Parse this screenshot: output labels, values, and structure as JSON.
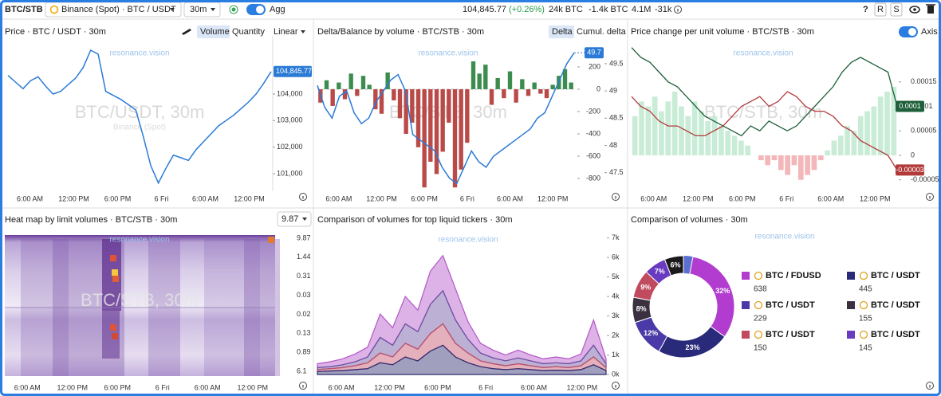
{
  "header": {
    "symbol": "BTC/STB",
    "exchange": "Binance (Spot) · BTC / USDT",
    "interval": "30m",
    "agg": "Agg",
    "price": "104,845.77",
    "change": "(+0.26%)",
    "stat1": "24k BTC",
    "stat2": "-1.4k BTC",
    "stat3": "4.1M",
    "stat4": "-31k",
    "buttons": [
      "?",
      "R",
      "S"
    ]
  },
  "chart_data": [
    {
      "type": "line",
      "title": "Price · BTC / USDT · 30m",
      "controls": [
        "Volume",
        "Quantity",
        "Linear"
      ],
      "watermarks": [
        "resonance.vision",
        "BTC/USDT, 30m",
        "Binance (Spot)"
      ],
      "x_labels": [
        "6:00 AM",
        "12:00 PM",
        "6:00 PM",
        "6 Fri",
        "6:00 AM",
        "12:00 PM"
      ],
      "ylim": [
        100340,
        106190
      ],
      "yticks": [
        {
          "value": 104000,
          "label": "104,000"
        },
        {
          "value": 103000,
          "label": "103,000"
        },
        {
          "value": 102000,
          "label": "102,000"
        },
        {
          "value": 101000,
          "label": "101,000"
        }
      ],
      "last_label": "104,845.77",
      "series": [
        {
          "color": "#2b7bd6",
          "values": [
            104700,
            104450,
            104200,
            104500,
            104650,
            104300,
            104000,
            104100,
            104350,
            104600,
            105000,
            105650,
            105500,
            104100,
            103950,
            103800,
            103600,
            103400,
            102400,
            101300,
            100650,
            101200,
            101700,
            101600,
            101500,
            101900,
            102200,
            102500,
            102800,
            103000,
            103200,
            103450,
            103700,
            104000,
            104400,
            104845.77
          ]
        }
      ]
    },
    {
      "type": "bar_line",
      "title": "Delta/Balance by volume · BTC/STB · 30m",
      "controls": [
        "Delta",
        "Cumul. delta"
      ],
      "watermarks": [
        "resonance.vision",
        "BTC/STB, 30m"
      ],
      "x_labels": [
        "6:00 AM",
        "12:00 PM",
        "6:00 PM",
        "6 Fri",
        "6:00 AM",
        "12:00 PM"
      ],
      "ylim": [
        -914,
        478
      ],
      "yticks": [
        200,
        0,
        -200,
        -400,
        -600,
        -800
      ],
      "y2lim": [
        47.16,
        50.01
      ],
      "y2ticks": [
        49.5,
        49,
        48.5,
        48,
        47.5
      ],
      "last_label": "49.7",
      "series": [
        {
          "type": "bar",
          "color": "#3d8c4f",
          "negative_color": "#b94a48",
          "values": [
            -120,
            80,
            -150,
            60,
            -90,
            140,
            -60,
            120,
            40,
            -180,
            -220,
            150,
            -100,
            -260,
            -400,
            -300,
            -520,
            -880,
            -650,
            -760,
            -560,
            -300,
            -880,
            -720,
            -480,
            250,
            140,
            220,
            -140,
            100,
            -80,
            160,
            -120,
            90,
            -60,
            60,
            -40,
            -80,
            40,
            120,
            180,
            60
          ]
        },
        {
          "type": "line",
          "axis": "y2",
          "color": "#2b7bd6",
          "values": [
            49.1,
            48.7,
            48.5,
            48.9,
            49.0,
            48.6,
            48.4,
            48.5,
            48.8,
            49.0,
            49.2,
            49.3,
            49.0,
            48.2,
            48.1,
            48.0,
            47.9,
            47.6,
            47.4,
            47.3,
            47.6,
            47.9,
            47.7,
            47.6,
            47.8,
            47.9,
            48.0,
            48.1,
            48.2,
            48.3,
            48.5,
            48.6,
            48.9,
            49.2,
            49.5,
            49.7
          ]
        }
      ]
    },
    {
      "type": "bar_line",
      "title": "Price change per unit volume · BTC/STB · 30m",
      "controls": [
        "Axis"
      ],
      "watermarks": [
        "resonance.vision",
        "BTC/STB, 30m"
      ],
      "x_labels": [
        "6:00 AM",
        "12:00 PM",
        "6:00 PM",
        "6 Fri",
        "6:00 AM",
        "12:00 PM"
      ],
      "ylim": [
        -7.33e-05,
        0.000244
      ],
      "yticks": [
        0.00015,
        0.0001,
        5e-05,
        0,
        -5e-05
      ],
      "last_labels": [
        "0.0001",
        "-0.00003"
      ],
      "series": [
        {
          "type": "bar",
          "color": "#c8ecd6",
          "negative_color": "#f3b7b9",
          "values": [
            8e-05,
            0.00011,
            0.0001,
            0.00012,
            9e-05,
            0.00011,
            0.00013,
            0.0001,
            8e-05,
            0.00011,
            9e-05,
            7e-05,
            8e-05,
            6e-05,
            5e-05,
            4e-05,
            3e-05,
            2e-05,
            0,
            -1e-05,
            -2e-05,
            -1e-05,
            -3e-05,
            -4e-05,
            -2e-05,
            -5e-05,
            -4e-05,
            -3e-05,
            -1e-05,
            1e-05,
            3e-05,
            4e-05,
            6e-05,
            5e-05,
            8e-05,
            9e-05,
            0.0001,
            0.00012,
            0.00013,
            0.00014
          ]
        },
        {
          "type": "line",
          "color": "#1f5f3a",
          "values": [
            0.00022,
            0.0002,
            0.00019,
            0.00017,
            0.00015,
            0.00014,
            0.00012,
            0.0001,
            8e-05,
            7e-05,
            6e-05,
            5e-05,
            4e-05,
            6e-05,
            5e-05,
            7e-05,
            6e-05,
            5e-05,
            6e-05,
            8e-05,
            0.0001,
            0.00012,
            0.00014,
            0.00017,
            0.00019,
            0.0002,
            0.00019,
            0.00018,
            0.00017,
            0.0001
          ]
        },
        {
          "type": "line",
          "color": "#b23a3a",
          "values": [
            0.00012,
            0.0001,
            9e-05,
            7e-05,
            6e-05,
            6e-05,
            5e-05,
            4e-05,
            4e-05,
            5e-05,
            6e-05,
            8e-05,
            0.0001,
            0.00011,
            0.00012,
            0.0001,
            0.00011,
            0.00013,
            0.00012,
            0.0001,
            9e-05,
            9e-05,
            8e-05,
            6e-05,
            5e-05,
            3e-05,
            2e-05,
            1e-05,
            0,
            -3e-05
          ]
        }
      ]
    },
    {
      "type": "heatmap",
      "title": "Heat map by limit volumes · BTC/STB · 30m",
      "threshold": 9.87,
      "watermarks": [
        "resonance.vision",
        "BTC/STB, 30m"
      ],
      "x_labels": [
        "6:00 AM",
        "12:00 PM",
        "6:00 PM",
        "6 Fri",
        "6:00 AM",
        "12:00 PM"
      ],
      "scale_labels": [
        9.87,
        1.44,
        0.31,
        0.03,
        0.02,
        0.13,
        0.89,
        6.1
      ]
    },
    {
      "type": "stacked_area",
      "title": "Comparison of volumes for top liquid tickers · 30m",
      "watermarks": [
        "resonance.vision"
      ],
      "x_labels": [
        "6:00 AM",
        "12:00 PM",
        "6:00 PM",
        "6 Fri",
        "6:00 AM",
        "12:00 PM"
      ],
      "ylim": [
        0,
        7150
      ],
      "yticks": [
        {
          "value": 7000,
          "label": "7k"
        },
        {
          "value": 6000,
          "label": "6k"
        },
        {
          "value": 5000,
          "label": "5k"
        },
        {
          "value": 4000,
          "label": "4k"
        },
        {
          "value": 3000,
          "label": "3k"
        },
        {
          "value": 2000,
          "label": "2k"
        },
        {
          "value": 1000,
          "label": "1k"
        },
        {
          "value": 0,
          "label": "0k"
        }
      ],
      "series": [
        {
          "color": "#2e2a6e",
          "values": [
            150,
            180,
            200,
            250,
            300,
            600,
            500,
            900,
            700,
            1200,
            1500,
            900,
            600,
            400,
            300,
            250,
            300,
            250,
            200,
            220,
            200,
            250,
            500,
            200
          ]
        },
        {
          "color": "#c0506a",
          "values": [
            100,
            120,
            150,
            200,
            300,
            500,
            400,
            700,
            600,
            900,
            1100,
            700,
            500,
            300,
            250,
            200,
            250,
            200,
            150,
            180,
            150,
            200,
            400,
            150
          ]
        },
        {
          "color": "#6b4fa0",
          "values": [
            100,
            100,
            150,
            200,
            300,
            800,
            600,
            1000,
            900,
            1500,
            1700,
            1200,
            700,
            400,
            300,
            250,
            300,
            250,
            200,
            200,
            200,
            250,
            600,
            200
          ]
        },
        {
          "color": "#b455c8",
          "values": [
            200,
            250,
            300,
            400,
            500,
            1200,
            900,
            1400,
            1100,
            1700,
            1800,
            1600,
            900,
            500,
            400,
            300,
            400,
            300,
            250,
            300,
            250,
            350,
            1300,
            250
          ]
        }
      ]
    },
    {
      "type": "donut",
      "title": "Comparison of volumes · 30m",
      "watermarks": [
        "resonance.vision"
      ],
      "values": [
        32,
        23,
        12,
        8,
        9,
        7,
        6
      ],
      "value_labels": [
        "32%",
        "23%",
        "12%",
        "8%",
        "9%",
        "7%",
        "6%"
      ],
      "colors": [
        "#b23ccf",
        "#2a2a7a",
        "#4a3aa8",
        "#3b3040",
        "#c04a5e",
        "#6a3ac0",
        "#1a1a1a"
      ],
      "legend": [
        {
          "label": "BTC / FDUSD",
          "value": 638,
          "color": "#b23ccf"
        },
        {
          "label": "BTC / USDT",
          "value": 445,
          "color": "#2a2a7a"
        },
        {
          "label": "BTC / USDT",
          "value": 229,
          "color": "#4a3aa8"
        },
        {
          "label": "BTC / USDT",
          "value": 155,
          "color": "#3b3040"
        },
        {
          "label": "BTC / USDT",
          "value": 150,
          "color": "#c04a5e"
        },
        {
          "label": "BTC / USDT",
          "value": 145,
          "color": "#6a3ac0"
        }
      ]
    }
  ]
}
